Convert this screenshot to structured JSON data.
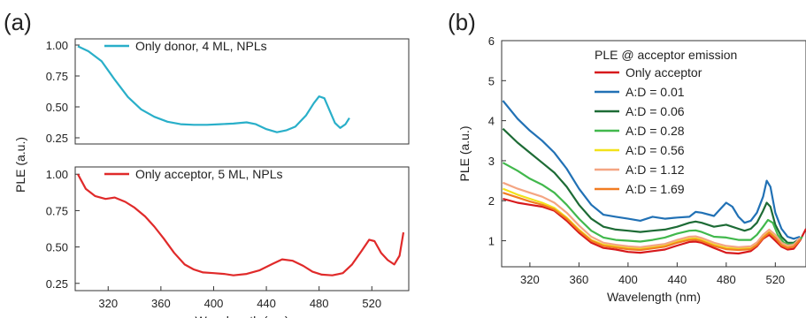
{
  "panels": {
    "a": "(a)",
    "b": "(b)"
  },
  "chart_data": [
    {
      "type": "line",
      "panel": "(a)",
      "subplot": "top",
      "xlabel": "",
      "ylabel": "PLE (a.u.)",
      "xlim": [
        295,
        548
      ],
      "ylim": [
        0.2,
        1.05
      ],
      "yticks": [
        0.25,
        0.5,
        0.75,
        1.0
      ],
      "ytick_labels": [
        "0.25",
        "0.50",
        "0.75",
        "1.00"
      ],
      "legend_position": "top-left",
      "series": [
        {
          "name": "Only donor, 4 ML, NPLs",
          "color": "#29afc9",
          "x": [
            297,
            305,
            315,
            325,
            335,
            345,
            355,
            365,
            375,
            385,
            395,
            405,
            415,
            425,
            432,
            440,
            448,
            455,
            462,
            470,
            476,
            480,
            484,
            488,
            492,
            496,
            500,
            503
          ],
          "y": [
            0.99,
            0.95,
            0.87,
            0.72,
            0.58,
            0.48,
            0.42,
            0.38,
            0.36,
            0.355,
            0.355,
            0.36,
            0.365,
            0.375,
            0.36,
            0.32,
            0.295,
            0.31,
            0.34,
            0.43,
            0.53,
            0.585,
            0.57,
            0.47,
            0.37,
            0.33,
            0.36,
            0.41
          ]
        }
      ]
    },
    {
      "type": "line",
      "panel": "(a)",
      "subplot": "bottom",
      "xlabel": "Wavelength (nm)",
      "ylabel": "PLE (a.u.)",
      "xlim": [
        295,
        548
      ],
      "ylim": [
        0.2,
        1.05
      ],
      "xticks": [
        320,
        360,
        400,
        440,
        480,
        520
      ],
      "yticks": [
        0.25,
        0.5,
        0.75,
        1.0
      ],
      "ytick_labels": [
        "0.25",
        "0.50",
        "0.75",
        "1.00"
      ],
      "legend_position": "top-left",
      "series": [
        {
          "name": "Only acceptor, 5 ML, NPLs",
          "color": "#e02a2a",
          "x": [
            297,
            303,
            310,
            318,
            325,
            333,
            340,
            348,
            355,
            362,
            370,
            378,
            385,
            392,
            400,
            408,
            415,
            425,
            435,
            445,
            452,
            460,
            468,
            475,
            482,
            490,
            498,
            505,
            512,
            518,
            522,
            527,
            532,
            537,
            541,
            544
          ],
          "y": [
            1.0,
            0.9,
            0.85,
            0.83,
            0.84,
            0.81,
            0.77,
            0.71,
            0.64,
            0.56,
            0.46,
            0.38,
            0.345,
            0.325,
            0.32,
            0.315,
            0.305,
            0.315,
            0.34,
            0.385,
            0.415,
            0.405,
            0.37,
            0.33,
            0.31,
            0.305,
            0.32,
            0.38,
            0.47,
            0.55,
            0.54,
            0.46,
            0.41,
            0.38,
            0.44,
            0.6
          ]
        }
      ]
    },
    {
      "type": "line",
      "panel": "(b)",
      "title": "",
      "xlabel": "Wavelength (nm)",
      "ylabel": "PLE (a.u.)",
      "xlim": [
        297,
        545
      ],
      "ylim": [
        0.35,
        6
      ],
      "xticks": [
        320,
        360,
        400,
        440,
        480,
        520
      ],
      "yticks": [
        1,
        2,
        3,
        4,
        5,
        6
      ],
      "legend_title": "PLE @ acceptor emission",
      "legend_position": "top-right",
      "series": [
        {
          "name": "Only acceptor",
          "color": "#d7191c",
          "x": [
            298,
            310,
            320,
            330,
            340,
            350,
            360,
            370,
            380,
            390,
            400,
            410,
            420,
            430,
            440,
            450,
            455,
            460,
            470,
            480,
            490,
            500,
            505,
            510,
            515,
            520,
            525,
            530,
            535,
            540,
            545
          ],
          "y": [
            2.05,
            1.95,
            1.9,
            1.85,
            1.75,
            1.5,
            1.2,
            0.95,
            0.82,
            0.78,
            0.72,
            0.7,
            0.74,
            0.78,
            0.88,
            0.97,
            0.98,
            0.95,
            0.82,
            0.7,
            0.68,
            0.74,
            0.86,
            1.05,
            1.15,
            1.0,
            0.85,
            0.78,
            0.8,
            1.0,
            1.3
          ]
        },
        {
          "name": "A:D = 0.01",
          "color": "#2171b5",
          "x": [
            298,
            310,
            320,
            330,
            340,
            350,
            360,
            370,
            380,
            390,
            400,
            410,
            420,
            430,
            440,
            450,
            455,
            460,
            470,
            476,
            480,
            485,
            490,
            495,
            500,
            505,
            510,
            513,
            516,
            520,
            525,
            530,
            535,
            540
          ],
          "y": [
            4.5,
            4.05,
            3.75,
            3.5,
            3.2,
            2.8,
            2.3,
            1.9,
            1.65,
            1.6,
            1.55,
            1.5,
            1.6,
            1.55,
            1.58,
            1.6,
            1.72,
            1.7,
            1.62,
            1.82,
            1.95,
            1.85,
            1.6,
            1.45,
            1.5,
            1.7,
            2.1,
            2.5,
            2.35,
            1.7,
            1.3,
            1.1,
            1.05,
            1.1
          ]
        },
        {
          "name": "A:D = 0.06",
          "color": "#1d6b35",
          "x": [
            298,
            310,
            320,
            330,
            340,
            350,
            360,
            370,
            380,
            390,
            400,
            410,
            420,
            430,
            440,
            450,
            455,
            460,
            470,
            480,
            490,
            495,
            500,
            505,
            510,
            513,
            516,
            520,
            525,
            530,
            535,
            540
          ],
          "y": [
            3.8,
            3.45,
            3.2,
            2.95,
            2.7,
            2.35,
            1.9,
            1.55,
            1.35,
            1.28,
            1.25,
            1.22,
            1.25,
            1.28,
            1.35,
            1.45,
            1.48,
            1.45,
            1.35,
            1.4,
            1.3,
            1.25,
            1.3,
            1.45,
            1.75,
            1.95,
            1.85,
            1.4,
            1.1,
            0.95,
            0.95,
            1.05
          ]
        },
        {
          "name": "A:D = 0.28",
          "color": "#41b84c",
          "x": [
            298,
            310,
            320,
            330,
            340,
            350,
            360,
            370,
            380,
            390,
            400,
            410,
            420,
            430,
            440,
            450,
            455,
            460,
            470,
            480,
            490,
            500,
            505,
            510,
            514,
            518,
            522,
            527,
            532,
            537,
            542
          ],
          "y": [
            2.95,
            2.75,
            2.55,
            2.4,
            2.2,
            1.9,
            1.55,
            1.25,
            1.08,
            1.02,
            1.0,
            0.98,
            1.02,
            1.08,
            1.18,
            1.25,
            1.26,
            1.22,
            1.1,
            1.08,
            1.02,
            1.02,
            1.15,
            1.35,
            1.52,
            1.45,
            1.15,
            0.95,
            0.9,
            0.95,
            1.1
          ]
        },
        {
          "name": "A:D = 0.56",
          "color": "#f2e21a",
          "x": [
            298,
            310,
            320,
            330,
            340,
            350,
            360,
            370,
            380,
            390,
            400,
            410,
            420,
            430,
            440,
            450,
            455,
            460,
            470,
            480,
            490,
            500,
            505,
            510,
            515,
            520,
            525,
            530,
            535,
            540
          ],
          "y": [
            2.3,
            2.15,
            2.05,
            1.95,
            1.82,
            1.58,
            1.28,
            1.02,
            0.9,
            0.86,
            0.82,
            0.8,
            0.84,
            0.88,
            0.98,
            1.05,
            1.06,
            1.02,
            0.9,
            0.82,
            0.8,
            0.82,
            0.92,
            1.1,
            1.22,
            1.1,
            0.92,
            0.85,
            0.88,
            1.05
          ]
        },
        {
          "name": "A:D = 1.12",
          "color": "#f4a582",
          "x": [
            298,
            310,
            320,
            330,
            340,
            350,
            360,
            370,
            380,
            390,
            400,
            410,
            420,
            430,
            440,
            450,
            455,
            460,
            470,
            480,
            490,
            500,
            505,
            510,
            515,
            520,
            525,
            530,
            535,
            540
          ],
          "y": [
            2.45,
            2.3,
            2.2,
            2.1,
            1.95,
            1.7,
            1.38,
            1.1,
            0.95,
            0.9,
            0.86,
            0.84,
            0.88,
            0.92,
            1.02,
            1.1,
            1.11,
            1.07,
            0.95,
            0.87,
            0.84,
            0.86,
            0.96,
            1.15,
            1.28,
            1.15,
            0.95,
            0.88,
            0.9,
            1.07
          ]
        },
        {
          "name": "A:D = 1.69",
          "color": "#f17c22",
          "x": [
            298,
            310,
            320,
            330,
            340,
            350,
            360,
            370,
            380,
            390,
            400,
            410,
            420,
            430,
            440,
            450,
            455,
            460,
            470,
            480,
            490,
            500,
            505,
            510,
            515,
            520,
            525,
            530,
            535,
            540
          ],
          "y": [
            2.2,
            2.08,
            1.98,
            1.9,
            1.78,
            1.55,
            1.25,
            1.0,
            0.87,
            0.83,
            0.79,
            0.77,
            0.81,
            0.85,
            0.95,
            1.02,
            1.03,
            0.99,
            0.87,
            0.79,
            0.77,
            0.79,
            0.89,
            1.07,
            1.2,
            1.07,
            0.89,
            0.82,
            0.85,
            1.02
          ]
        }
      ]
    }
  ]
}
